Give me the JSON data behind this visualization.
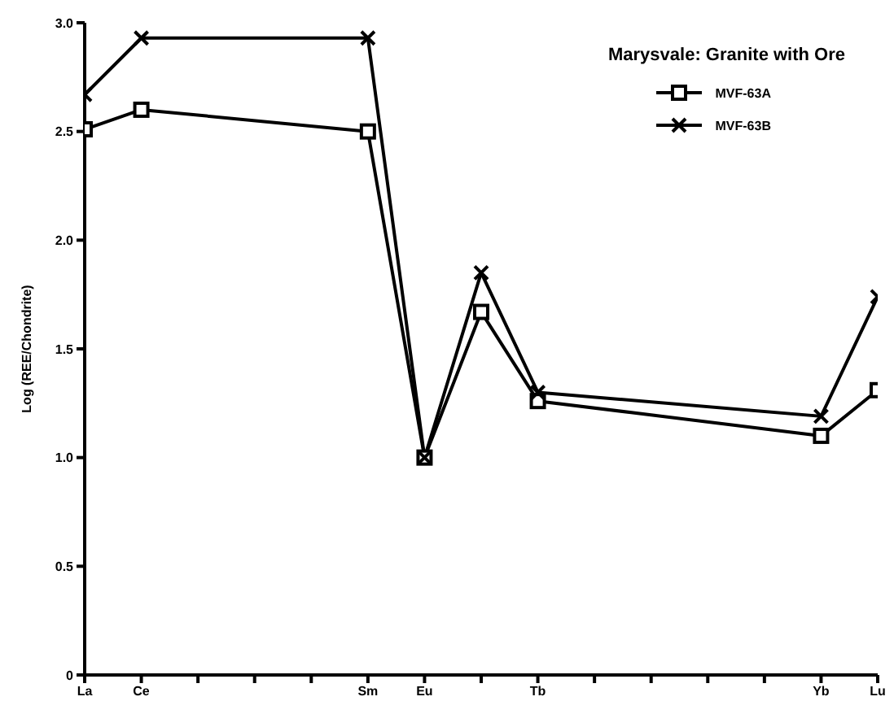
{
  "chart_data": {
    "type": "line",
    "title": "Marysvale: Granite with Ore",
    "ylabel": "Log (REE/Chondrite)",
    "categories": [
      "La",
      "Ce",
      null,
      null,
      null,
      "Sm",
      "Eu",
      null,
      "Tb",
      null,
      null,
      null,
      null,
      "Yb",
      "Lu"
    ],
    "series": [
      {
        "name": "MVF-63A",
        "color": "#000000",
        "marker": "square",
        "values": [
          2.51,
          2.6,
          null,
          null,
          null,
          2.5,
          1.0,
          1.67,
          1.26,
          null,
          null,
          null,
          null,
          1.1,
          1.31
        ]
      },
      {
        "name": "MVF-63B",
        "color": "#000000",
        "marker": "cross",
        "values": [
          2.67,
          2.93,
          null,
          null,
          null,
          2.93,
          1.0,
          1.85,
          1.3,
          null,
          null,
          null,
          null,
          1.19,
          1.74
        ]
      }
    ],
    "ylim": [
      0,
      3
    ],
    "yticks": [
      0,
      {
        "value": 0.5,
        "label": "0.5"
      },
      {
        "value": 1,
        "label": "1.0"
      },
      {
        "value": 1.5,
        "label": "1.5"
      },
      {
        "value": 2,
        "label": "2.0"
      },
      {
        "value": 2.5,
        "label": "2.5"
      },
      {
        "value": 3,
        "label": "3.0"
      }
    ],
    "grid": false,
    "legend": "top right",
    "line_style": "solid"
  }
}
